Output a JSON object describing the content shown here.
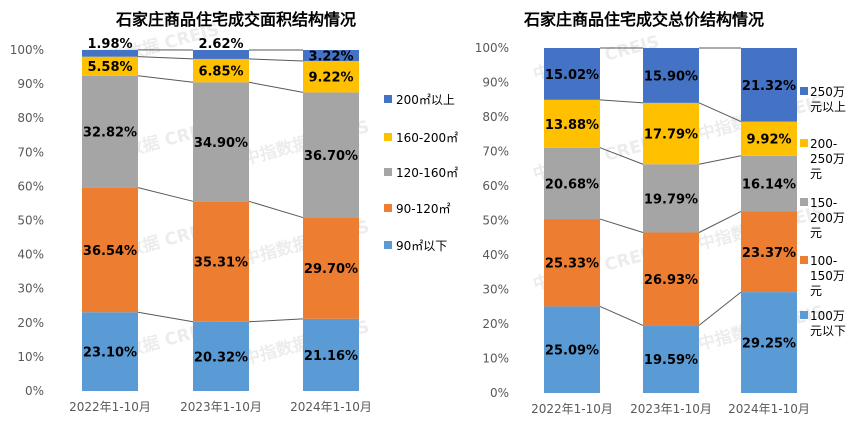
{
  "watermark": "中指数据 CREIS",
  "colors": {
    "bar_values": [
      "#5b9bd5",
      "#ed7d31",
      "#a5a5a5",
      "#ffc000",
      "#4472c4"
    ],
    "connector": "#595959",
    "axis_text": "#595959",
    "value_text": "#000000"
  },
  "chart_data": [
    {
      "type": "bar",
      "stacked": true,
      "title": "石家庄商品住宅成交面积结构情况",
      "categories": [
        "2022年1-10月",
        "2023年1-10月",
        "2024年1-10月"
      ],
      "ylim": [
        0,
        100
      ],
      "yticks": [
        "0%",
        "10%",
        "20%",
        "30%",
        "40%",
        "50%",
        "60%",
        "70%",
        "80%",
        "90%",
        "100%"
      ],
      "legend_position": "right",
      "series": [
        {
          "name": "90㎡以下",
          "values": [
            23.1,
            20.32,
            21.16
          ],
          "labels": [
            "23.10%",
            "20.32%",
            "21.16%"
          ]
        },
        {
          "name": "90-120㎡",
          "values": [
            36.54,
            35.31,
            29.7
          ],
          "labels": [
            "36.54%",
            "35.31%",
            "29.70%"
          ]
        },
        {
          "name": "120-160㎡",
          "values": [
            32.82,
            34.9,
            36.7
          ],
          "labels": [
            "32.82%",
            "34.90%",
            "36.70%"
          ]
        },
        {
          "name": "160-200㎡",
          "values": [
            5.58,
            6.85,
            9.22
          ],
          "labels": [
            "5.58%",
            "6.85%",
            "9.22%"
          ]
        },
        {
          "name": "200㎡以上",
          "values": [
            1.98,
            2.62,
            3.22
          ],
          "labels": [
            "1.98%",
            "2.62%",
            "3.22%"
          ]
        }
      ]
    },
    {
      "type": "bar",
      "stacked": true,
      "title": "石家庄商品住宅成交总价结构情况",
      "categories": [
        "2022年1-10月",
        "2023年1-10月",
        "2024年1-10月"
      ],
      "ylim": [
        0,
        100
      ],
      "yticks": [
        "0%",
        "10%",
        "20%",
        "30%",
        "40%",
        "50%",
        "60%",
        "70%",
        "80%",
        "90%",
        "100%"
      ],
      "legend_position": "right",
      "series": [
        {
          "name": "100万元以下",
          "legend_lines": [
            "100万",
            "元以下"
          ],
          "values": [
            25.09,
            19.59,
            29.25
          ],
          "labels": [
            "25.09%",
            "19.59%",
            "29.25%"
          ]
        },
        {
          "name": "100-150万元",
          "legend_lines": [
            "100-",
            "150万",
            "元"
          ],
          "values": [
            25.33,
            26.93,
            23.37
          ],
          "labels": [
            "25.33%",
            "26.93%",
            "23.37%"
          ]
        },
        {
          "name": "150-200万元",
          "legend_lines": [
            "150-",
            "200万",
            "元"
          ],
          "values": [
            20.68,
            19.79,
            16.14
          ],
          "labels": [
            "20.68%",
            "19.79%",
            "16.14%"
          ]
        },
        {
          "name": "200-250万元",
          "legend_lines": [
            "200-",
            "250万",
            "元"
          ],
          "values": [
            13.88,
            17.79,
            9.92
          ],
          "labels": [
            "13.88%",
            "17.79%",
            "9.92%"
          ]
        },
        {
          "name": "250万元以上",
          "legend_lines": [
            "250万",
            "元以上"
          ],
          "values": [
            15.02,
            15.9,
            21.32
          ],
          "labels": [
            "15.02%",
            "15.90%",
            "21.32%"
          ]
        }
      ]
    }
  ]
}
